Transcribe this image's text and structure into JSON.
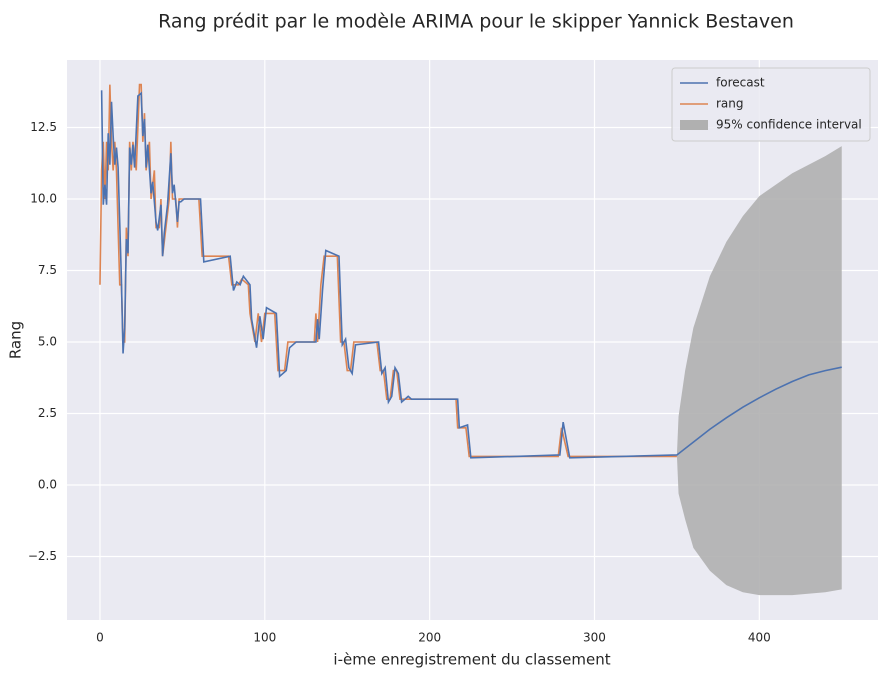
{
  "chart_data": {
    "type": "line",
    "title": "Rang prédit par le modèle ARIMA pour le skipper Yannick Bestaven",
    "xlabel": "i-ème enregistrement du classement",
    "ylabel": "Rang",
    "xlim": [
      -20,
      472
    ],
    "ylim": [
      -4.72,
      14.86
    ],
    "xticks": [
      0,
      100,
      200,
      300,
      400
    ],
    "yticks": [
      {
        "value": -2.5,
        "label": "−2.5"
      },
      {
        "value": 0,
        "label": "0.0"
      },
      2.5,
      {
        "value": 5,
        "label": "5.0"
      },
      7.5,
      {
        "value": 10,
        "label": "10.0"
      },
      12.5
    ],
    "grid": true,
    "legend": "upper right",
    "background": "#eaeaf2",
    "series": [
      {
        "name": "forecast",
        "color": "#4c72b0",
        "x": [
          1,
          2,
          3,
          4,
          5,
          6,
          7,
          8,
          9,
          10,
          11,
          13,
          14,
          15,
          16,
          17,
          18,
          19,
          20,
          21,
          23,
          25,
          26,
          27,
          28,
          29,
          31,
          32,
          34,
          35,
          37,
          38,
          39,
          41,
          43,
          44,
          45,
          47,
          48,
          49,
          51,
          61,
          63,
          79,
          81,
          83,
          85,
          87,
          91,
          92,
          95,
          97,
          99,
          101,
          107,
          109,
          113,
          115,
          119,
          131,
          132,
          133,
          135,
          137,
          145,
          147,
          149,
          151,
          153,
          155,
          169,
          171,
          173,
          175,
          177,
          179,
          181,
          183,
          187,
          189,
          217,
          218,
          223,
          225,
          279,
          281,
          285,
          350,
          360,
          370,
          380,
          390,
          400,
          410,
          420,
          430,
          440,
          450
        ],
        "values": [
          13.8,
          9.8,
          10.5,
          9.8,
          12.3,
          11.2,
          13.4,
          12.2,
          11.2,
          11.8,
          11.1,
          7.2,
          4.6,
          5.5,
          8.6,
          8.1,
          11.8,
          11.2,
          11.9,
          11.1,
          13.6,
          13.7,
          12.2,
          12.8,
          11.1,
          11.9,
          10.2,
          10.6,
          9.2,
          8.9,
          9.8,
          8.0,
          8.8,
          9.8,
          11.6,
          10.2,
          10.5,
          9.2,
          9.9,
          9.9,
          10,
          10,
          7.8,
          8,
          6.8,
          7.1,
          7.0,
          7.3,
          7,
          5.8,
          4.8,
          5.9,
          5.1,
          6.2,
          6,
          3.8,
          4,
          4.8,
          5,
          5,
          5.8,
          5.1,
          6.8,
          8.2,
          8,
          4.9,
          5.1,
          4.1,
          3.9,
          4.9,
          5,
          3.9,
          4.1,
          2.9,
          3.1,
          4.1,
          3.9,
          2.9,
          3.1,
          3,
          3,
          2.0,
          2.1,
          0.95,
          1.05,
          2.2,
          0.95,
          1.05,
          1.5,
          1.95,
          2.35,
          2.72,
          3.05,
          3.35,
          3.62,
          3.85,
          4.0,
          4.12
        ]
      },
      {
        "name": "rang",
        "color": "#dd8452",
        "x": [
          0,
          1,
          2,
          3,
          4,
          5,
          6,
          7,
          8,
          9,
          10,
          12,
          13,
          14,
          15,
          16,
          17,
          18,
          19,
          20,
          22,
          24,
          25,
          26,
          27,
          28,
          30,
          31,
          33,
          34,
          36,
          37,
          38,
          40,
          42,
          43,
          44,
          46,
          47,
          48,
          50,
          60,
          62,
          78,
          80,
          82,
          84,
          86,
          90,
          91,
          94,
          96,
          98,
          100,
          106,
          108,
          112,
          114,
          118,
          130,
          131,
          132,
          134,
          136,
          144,
          146,
          148,
          150,
          152,
          154,
          168,
          170,
          172,
          174,
          176,
          178,
          180,
          182,
          186,
          188,
          216,
          217,
          222,
          224,
          278,
          280,
          284,
          350
        ],
        "values": [
          7,
          11,
          12,
          10,
          12,
          11,
          14,
          12,
          11,
          12,
          11,
          7,
          7,
          5,
          5,
          9,
          8,
          12,
          11,
          12,
          11,
          14,
          14,
          12,
          13,
          11,
          12,
          10,
          11,
          9,
          9,
          10,
          8,
          9,
          10,
          12,
          10,
          10,
          9,
          10,
          10,
          10,
          8,
          8,
          7,
          7,
          7,
          7.2,
          7,
          6,
          5,
          6,
          5,
          6,
          6,
          4,
          4,
          5,
          5,
          5,
          6,
          5,
          7,
          8,
          8,
          5,
          5,
          4,
          4,
          5,
          5,
          4,
          4,
          3,
          3,
          4,
          4,
          3,
          3,
          3,
          3,
          2,
          2,
          1,
          1,
          2,
          1,
          1
        ]
      }
    ],
    "interval": {
      "name": "95% confidence interval",
      "color": "#b0b0b0",
      "x": [
        350,
        351,
        355,
        360,
        370,
        380,
        390,
        400,
        420,
        440,
        450
      ],
      "lower": [
        1.05,
        -0.3,
        -1.2,
        -2.2,
        -3.0,
        -3.5,
        -3.75,
        -3.85,
        -3.85,
        -3.75,
        -3.65
      ],
      "upper": [
        1.05,
        2.4,
        4.0,
        5.5,
        7.3,
        8.5,
        9.4,
        10.1,
        10.9,
        11.5,
        11.85
      ]
    }
  }
}
